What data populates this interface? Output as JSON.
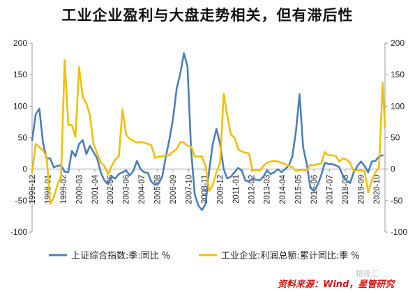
{
  "title": "工业企业盈利与大盘走势相关，但有滞后性",
  "source": "资料来源：Wind，星管研究",
  "watermark": "格隆汇",
  "colors": {
    "blue": "#4a7ebb",
    "yellow": "#f5be00",
    "axis": "#9a9a9a"
  },
  "chart_data": {
    "type": "line",
    "title": "工业企业盈利与大盘走势相关，但有滞后性",
    "ylim": [
      -100,
      200
    ],
    "y_ticks": [
      -100,
      -50,
      0,
      50,
      100,
      150,
      200
    ],
    "y2lim": [
      -100,
      200
    ],
    "y2_ticks": [
      -100,
      -50,
      0,
      50,
      100,
      150,
      200
    ],
    "x_range": [
      1996.917,
      2021.333
    ],
    "x_tick_labels": [
      "1996-12",
      "1998-01",
      "1999-02",
      "2000-03",
      "2001-04",
      "2002-05",
      "2003-06",
      "2004-07",
      "2005-08",
      "2006-09",
      "2007-10",
      "2008-11",
      "2009-12",
      "2011-01",
      "2012-02",
      "2013-03",
      "2014-04",
      "2015-05",
      "2016-06",
      "2017-07",
      "2018-08",
      "2019-09",
      "2020-10"
    ],
    "grid": false,
    "legend_position": "bottom",
    "series": [
      {
        "name": "上证综合指数:季:同比 %",
        "color": "#4a7ebb",
        "axis": "left",
        "points": [
          [
            1996.92,
            46
          ],
          [
            1997.17,
            87
          ],
          [
            1997.42,
            96
          ],
          [
            1997.67,
            42
          ],
          [
            1997.92,
            17
          ],
          [
            1998.17,
            17
          ],
          [
            1998.42,
            3
          ],
          [
            1998.67,
            5
          ],
          [
            1998.92,
            6
          ],
          [
            1999.17,
            -4
          ],
          [
            1999.42,
            -5
          ],
          [
            1999.67,
            29
          ],
          [
            1999.92,
            20
          ],
          [
            2000.17,
            40
          ],
          [
            2000.42,
            46
          ],
          [
            2000.67,
            24
          ],
          [
            2000.92,
            37
          ],
          [
            2001.17,
            27
          ],
          [
            2001.42,
            17
          ],
          [
            2001.67,
            -5
          ],
          [
            2001.92,
            -18
          ],
          [
            2002.17,
            -24
          ],
          [
            2002.42,
            -12
          ],
          [
            2002.67,
            -15
          ],
          [
            2002.92,
            -8
          ],
          [
            2003.17,
            -5
          ],
          [
            2003.42,
            -2
          ],
          [
            2003.67,
            -10
          ],
          [
            2003.92,
            -3
          ],
          [
            2004.17,
            13
          ],
          [
            2004.42,
            0
          ],
          [
            2004.67,
            -5
          ],
          [
            2004.92,
            -6
          ],
          [
            2005.17,
            -20
          ],
          [
            2005.42,
            -25
          ],
          [
            2005.67,
            -23
          ],
          [
            2005.92,
            -12
          ],
          [
            2006.17,
            20
          ],
          [
            2006.42,
            47
          ],
          [
            2006.67,
            80
          ],
          [
            2006.92,
            128
          ],
          [
            2007.17,
            152
          ],
          [
            2007.42,
            184
          ],
          [
            2007.67,
            163
          ],
          [
            2007.92,
            30
          ],
          [
            2008.17,
            -40
          ],
          [
            2008.42,
            -58
          ],
          [
            2008.67,
            -65
          ],
          [
            2008.92,
            -55
          ],
          [
            2009.17,
            -2
          ],
          [
            2009.42,
            40
          ],
          [
            2009.67,
            64
          ],
          [
            2009.92,
            40
          ],
          [
            2010.17,
            0
          ],
          [
            2010.42,
            -15
          ],
          [
            2010.67,
            -12
          ],
          [
            2010.92,
            -5
          ],
          [
            2011.17,
            2
          ],
          [
            2011.42,
            -2
          ],
          [
            2011.67,
            -18
          ],
          [
            2011.92,
            -20
          ],
          [
            2012.17,
            -15
          ],
          [
            2012.42,
            -17
          ],
          [
            2012.67,
            -18
          ],
          [
            2012.92,
            -12
          ],
          [
            2013.17,
            -2
          ],
          [
            2013.42,
            -8
          ],
          [
            2013.67,
            -5
          ],
          [
            2013.92,
            0
          ],
          [
            2014.17,
            -5
          ],
          [
            2014.42,
            0
          ],
          [
            2014.67,
            5
          ],
          [
            2014.92,
            20
          ],
          [
            2015.17,
            60
          ],
          [
            2015.42,
            119
          ],
          [
            2015.67,
            35
          ],
          [
            2015.92,
            8
          ],
          [
            2016.17,
            -30
          ],
          [
            2016.42,
            -35
          ],
          [
            2016.67,
            -25
          ],
          [
            2016.92,
            -10
          ],
          [
            2017.17,
            10
          ],
          [
            2017.42,
            8
          ],
          [
            2017.67,
            8
          ],
          [
            2017.92,
            6
          ],
          [
            2018.17,
            3
          ],
          [
            2018.42,
            -10
          ],
          [
            2018.67,
            -18
          ],
          [
            2018.92,
            -22
          ],
          [
            2019.17,
            -5
          ],
          [
            2019.42,
            5
          ],
          [
            2019.67,
            12
          ],
          [
            2019.92,
            5
          ],
          [
            2020.17,
            -5
          ],
          [
            2020.42,
            12
          ],
          [
            2020.67,
            13
          ],
          [
            2020.92,
            20
          ],
          [
            2021.17,
            22
          ]
        ]
      },
      {
        "name": "工业企业:利润总额:累计同比:季 %",
        "color": "#f5be00",
        "axis": "right",
        "points": [
          [
            1996.92,
            -5
          ],
          [
            1997.17,
            40
          ],
          [
            1997.42,
            35
          ],
          [
            1997.67,
            30
          ],
          [
            1997.92,
            20
          ],
          [
            1998.17,
            -55
          ],
          [
            1998.42,
            -45
          ],
          [
            1998.67,
            -25
          ],
          [
            1998.92,
            -12
          ],
          [
            1999.17,
            173
          ],
          [
            1999.42,
            70
          ],
          [
            1999.67,
            70
          ],
          [
            1999.92,
            51
          ],
          [
            2000.17,
            162
          ],
          [
            2000.42,
            115
          ],
          [
            2000.67,
            105
          ],
          [
            2000.92,
            85
          ],
          [
            2001.17,
            40
          ],
          [
            2001.42,
            25
          ],
          [
            2001.67,
            10
          ],
          [
            2001.92,
            5
          ],
          [
            2002.17,
            -8
          ],
          [
            2002.42,
            5
          ],
          [
            2002.67,
            15
          ],
          [
            2002.92,
            20
          ],
          [
            2003.17,
            95
          ],
          [
            2003.42,
            55
          ],
          [
            2003.67,
            48
          ],
          [
            2003.92,
            45
          ],
          [
            2004.17,
            42
          ],
          [
            2004.42,
            43
          ],
          [
            2004.67,
            42
          ],
          [
            2004.92,
            40
          ],
          [
            2005.17,
            38
          ],
          [
            2005.42,
            18
          ],
          [
            2005.67,
            20
          ],
          [
            2005.92,
            20
          ],
          [
            2006.17,
            22
          ],
          [
            2006.42,
            22
          ],
          [
            2006.67,
            28
          ],
          [
            2006.92,
            32
          ],
          [
            2007.17,
            43
          ],
          [
            2007.42,
            42
          ],
          [
            2007.67,
            37
          ],
          [
            2007.92,
            36
          ],
          [
            2008.17,
            20
          ],
          [
            2008.42,
            20
          ],
          [
            2008.67,
            20
          ],
          [
            2008.92,
            5
          ],
          [
            2009.17,
            -35
          ],
          [
            2009.42,
            -25
          ],
          [
            2009.67,
            -5
          ],
          [
            2009.92,
            10
          ],
          [
            2010.17,
            120
          ],
          [
            2010.42,
            85
          ],
          [
            2010.67,
            55
          ],
          [
            2010.92,
            50
          ],
          [
            2011.17,
            32
          ],
          [
            2011.42,
            28
          ],
          [
            2011.67,
            26
          ],
          [
            2011.92,
            25
          ],
          [
            2012.17,
            -2
          ],
          [
            2012.42,
            -2
          ],
          [
            2012.67,
            -2
          ],
          [
            2012.92,
            5
          ],
          [
            2013.17,
            10
          ],
          [
            2013.42,
            12
          ],
          [
            2013.67,
            13
          ],
          [
            2013.92,
            12
          ],
          [
            2014.17,
            10
          ],
          [
            2014.42,
            8
          ],
          [
            2014.67,
            5
          ],
          [
            2014.92,
            3
          ],
          [
            2015.17,
            -3
          ],
          [
            2015.42,
            -1
          ],
          [
            2015.67,
            -2
          ],
          [
            2015.92,
            -2
          ],
          [
            2016.17,
            7
          ],
          [
            2016.42,
            6
          ],
          [
            2016.67,
            8
          ],
          [
            2016.92,
            9
          ],
          [
            2017.17,
            27
          ],
          [
            2017.42,
            22
          ],
          [
            2017.67,
            22
          ],
          [
            2017.92,
            21
          ],
          [
            2018.17,
            12
          ],
          [
            2018.42,
            17
          ],
          [
            2018.67,
            15
          ],
          [
            2018.92,
            10
          ],
          [
            2019.17,
            -3
          ],
          [
            2019.42,
            -2
          ],
          [
            2019.67,
            -2
          ],
          [
            2019.92,
            -3
          ],
          [
            2020.17,
            -37
          ],
          [
            2020.42,
            -18
          ],
          [
            2020.67,
            -5
          ],
          [
            2020.92,
            3
          ],
          [
            2021.17,
            137
          ],
          [
            2021.33,
            66
          ]
        ]
      }
    ]
  }
}
